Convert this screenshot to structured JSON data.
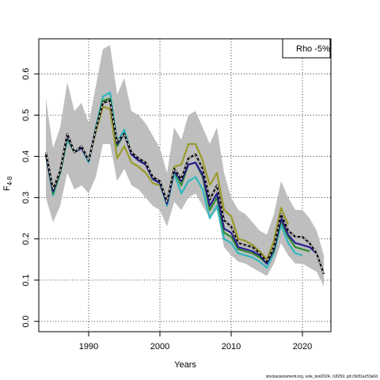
{
  "chart_data": {
    "type": "line",
    "xlabel": "Years",
    "ylabel_main": "F",
    "ylabel_sub": "4-8",
    "xlim": [
      1983,
      2024
    ],
    "ylim": [
      -0.025,
      0.685
    ],
    "x_ticks": [
      1990,
      2000,
      2010,
      2020
    ],
    "y_ticks": [
      0.0,
      0.1,
      0.2,
      0.3,
      0.4,
      0.5,
      0.6
    ],
    "y_tick_labels": [
      "0.0",
      "0.1",
      "0.2",
      "0.3",
      "0.4",
      "0.5",
      "0.6"
    ],
    "grid": true,
    "legend": {
      "position": "top-right",
      "text": "Rho -5%"
    },
    "footer": "stockassessment.org, sole_test2024, r18259, git:c9c81ac53a0d",
    "band": {
      "color": "#bebebe",
      "years": [
        1984,
        1985,
        1986,
        1987,
        1988,
        1989,
        1990,
        1991,
        1992,
        1993,
        1994,
        1995,
        1996,
        1997,
        1998,
        1999,
        2000,
        2001,
        2002,
        2003,
        2004,
        2005,
        2006,
        2007,
        2008,
        2009,
        2010,
        2011,
        2012,
        2013,
        2014,
        2015,
        2016,
        2017,
        2018,
        2019,
        2020,
        2021,
        2022,
        2023
      ],
      "upper": [
        0.54,
        0.42,
        0.47,
        0.58,
        0.51,
        0.53,
        0.48,
        0.57,
        0.66,
        0.67,
        0.55,
        0.59,
        0.51,
        0.5,
        0.48,
        0.45,
        0.42,
        0.36,
        0.47,
        0.44,
        0.5,
        0.51,
        0.47,
        0.43,
        0.47,
        0.36,
        0.3,
        0.27,
        0.26,
        0.24,
        0.22,
        0.21,
        0.26,
        0.34,
        0.3,
        0.27,
        0.27,
        0.25,
        0.22,
        0.16
      ],
      "lower": [
        0.3,
        0.24,
        0.28,
        0.36,
        0.32,
        0.33,
        0.31,
        0.35,
        0.43,
        0.43,
        0.34,
        0.37,
        0.33,
        0.32,
        0.3,
        0.28,
        0.27,
        0.23,
        0.29,
        0.27,
        0.3,
        0.31,
        0.28,
        0.25,
        0.27,
        0.18,
        0.16,
        0.145,
        0.14,
        0.13,
        0.12,
        0.11,
        0.14,
        0.19,
        0.16,
        0.14,
        0.14,
        0.13,
        0.12,
        0.085
      ]
    },
    "series": [
      {
        "color": "#9a9a2a",
        "x": [
          1984,
          1985,
          1986,
          1987,
          1988,
          1989,
          1990,
          1991,
          1992,
          1993,
          1994,
          1995,
          1996,
          1997,
          1998,
          1999,
          2000,
          2001,
          2002,
          2003,
          2004,
          2005,
          2006,
          2007,
          2008,
          2009,
          2010,
          2011,
          2012,
          2013,
          2014,
          2015,
          2016,
          2017,
          2018
        ],
        "y": [
          0.4,
          0.31,
          0.36,
          0.445,
          0.41,
          0.42,
          0.39,
          0.46,
          0.52,
          0.515,
          0.395,
          0.425,
          0.385,
          0.375,
          0.36,
          0.335,
          0.33,
          0.285,
          0.375,
          0.38,
          0.43,
          0.43,
          0.39,
          0.33,
          0.36,
          0.27,
          0.255,
          0.2,
          0.195,
          0.185,
          0.17,
          0.15,
          0.195,
          0.275,
          0.235
        ]
      },
      {
        "color": "#2fb8c0",
        "x": [
          1984,
          1985,
          1986,
          1987,
          1988,
          1989,
          1990,
          1991,
          1992,
          1993,
          1994,
          1995,
          1996,
          1997,
          1998,
          1999,
          2000,
          2001,
          2002,
          2003,
          2004,
          2005,
          2006,
          2007,
          2008,
          2009,
          2010,
          2011,
          2012,
          2013,
          2014,
          2015,
          2016,
          2017,
          2018,
          2019,
          2020
        ],
        "y": [
          0.405,
          0.305,
          0.36,
          0.44,
          0.41,
          0.42,
          0.385,
          0.47,
          0.545,
          0.555,
          0.435,
          0.465,
          0.405,
          0.395,
          0.385,
          0.345,
          0.335,
          0.28,
          0.36,
          0.31,
          0.34,
          0.35,
          0.32,
          0.25,
          0.28,
          0.2,
          0.19,
          0.165,
          0.16,
          0.155,
          0.145,
          0.13,
          0.165,
          0.235,
          0.19,
          0.165,
          0.16
        ]
      },
      {
        "color": "#2e8b2e",
        "x": [
          1984,
          1985,
          1986,
          1987,
          1988,
          1989,
          1990,
          1991,
          1992,
          1993,
          1994,
          1995,
          1996,
          1997,
          1998,
          1999,
          2000,
          2001,
          2002,
          2003,
          2004,
          2005,
          2006,
          2007,
          2008,
          2009,
          2010,
          2011,
          2012,
          2013,
          2014,
          2015,
          2016,
          2017,
          2018,
          2019,
          2020,
          2021
        ],
        "y": [
          0.405,
          0.31,
          0.36,
          0.445,
          0.41,
          0.42,
          0.39,
          0.465,
          0.535,
          0.54,
          0.425,
          0.455,
          0.405,
          0.39,
          0.38,
          0.345,
          0.335,
          0.285,
          0.365,
          0.33,
          0.38,
          0.385,
          0.35,
          0.27,
          0.3,
          0.215,
          0.205,
          0.175,
          0.17,
          0.165,
          0.155,
          0.14,
          0.17,
          0.245,
          0.205,
          0.18,
          0.175,
          0.17
        ]
      },
      {
        "color": "#2a1f8f",
        "x": [
          1984,
          1985,
          1986,
          1987,
          1988,
          1989,
          1990,
          1991,
          1992,
          1993,
          1994,
          1995,
          1996,
          1997,
          1998,
          1999,
          2000,
          2001,
          2002,
          2003,
          2004,
          2005,
          2006,
          2007,
          2008,
          2009,
          2010,
          2011,
          2012,
          2013,
          2014,
          2015,
          2016,
          2017,
          2018,
          2019,
          2020,
          2021,
          2022
        ],
        "y": [
          0.405,
          0.315,
          0.365,
          0.45,
          0.41,
          0.42,
          0.39,
          0.465,
          0.53,
          0.535,
          0.43,
          0.455,
          0.405,
          0.39,
          0.38,
          0.345,
          0.335,
          0.285,
          0.365,
          0.34,
          0.38,
          0.385,
          0.355,
          0.28,
          0.31,
          0.225,
          0.215,
          0.18,
          0.175,
          0.17,
          0.16,
          0.14,
          0.175,
          0.25,
          0.21,
          0.19,
          0.185,
          0.18,
          0.165
        ]
      },
      {
        "color": "#000000",
        "x": [
          1984,
          1985,
          1986,
          1987,
          1988,
          1989,
          1990,
          1991,
          1992,
          1993,
          1994,
          1995,
          1996,
          1997,
          1998,
          1999,
          2000,
          2001,
          2002,
          2003,
          2004,
          2005,
          2006,
          2007,
          2008,
          2009,
          2010,
          2011,
          2012,
          2013,
          2014,
          2015,
          2016,
          2017,
          2018,
          2019,
          2020,
          2021,
          2022,
          2023
        ],
        "y": [
          0.41,
          0.32,
          0.365,
          0.455,
          0.41,
          0.425,
          0.39,
          0.465,
          0.53,
          0.535,
          0.435,
          0.455,
          0.41,
          0.395,
          0.385,
          0.35,
          0.34,
          0.29,
          0.37,
          0.345,
          0.395,
          0.405,
          0.37,
          0.295,
          0.33,
          0.245,
          0.23,
          0.19,
          0.185,
          0.18,
          0.165,
          0.145,
          0.18,
          0.26,
          0.22,
          0.205,
          0.205,
          0.19,
          0.165,
          0.115
        ]
      },
      {
        "color": "#ffffff",
        "dashed": true,
        "x": [
          1984,
          1985,
          1986,
          1987,
          1988,
          1989,
          1990,
          1991,
          1992,
          1993,
          1994,
          1995,
          1996,
          1997,
          1998,
          1999,
          2000,
          2001,
          2002,
          2003,
          2004,
          2005,
          2006,
          2007,
          2008,
          2009,
          2010,
          2011,
          2012,
          2013,
          2014,
          2015,
          2016,
          2017,
          2018,
          2019,
          2020,
          2021,
          2022,
          2023
        ],
        "y": [
          0.41,
          0.32,
          0.365,
          0.455,
          0.41,
          0.425,
          0.39,
          0.465,
          0.53,
          0.535,
          0.435,
          0.455,
          0.41,
          0.395,
          0.385,
          0.35,
          0.34,
          0.29,
          0.37,
          0.345,
          0.395,
          0.405,
          0.37,
          0.295,
          0.33,
          0.245,
          0.23,
          0.19,
          0.185,
          0.18,
          0.165,
          0.145,
          0.18,
          0.26,
          0.22,
          0.205,
          0.205,
          0.19,
          0.165,
          0.115
        ]
      }
    ]
  }
}
